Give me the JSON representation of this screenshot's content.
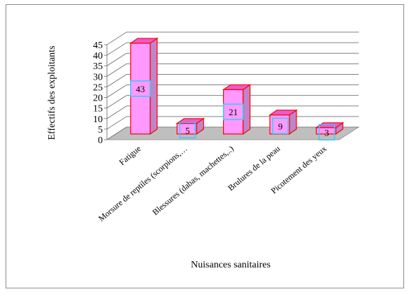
{
  "chart_data": {
    "type": "bar",
    "style": "3d-column",
    "categories": [
      "Fatigue",
      "Morsure de reptiles (scorpions,…",
      "Blessures (dabas, machettes,..)",
      "Brulures de la peau",
      "Picotement des yeux"
    ],
    "values": [
      43,
      5,
      21,
      9,
      3
    ],
    "data_labels": [
      "43",
      "5",
      "21",
      "9",
      "3"
    ],
    "xlabel": "Nuisances sanitaires",
    "ylabel": "Effectifs  des exploitants",
    "ylim": [
      0,
      45
    ],
    "yticks": [
      "0",
      "5",
      "10",
      "15",
      "20",
      "25",
      "30",
      "35",
      "40",
      "45"
    ],
    "grid": true,
    "legend": "none",
    "colors": {
      "bar_front": "#ff99ff",
      "bar_side": "#c084c8",
      "bar_top": "#e85ad0",
      "bar_edge": "#ff0000",
      "label_box": "#33ccff",
      "floor": "#bfbfbf",
      "gridline": "#808080"
    }
  }
}
